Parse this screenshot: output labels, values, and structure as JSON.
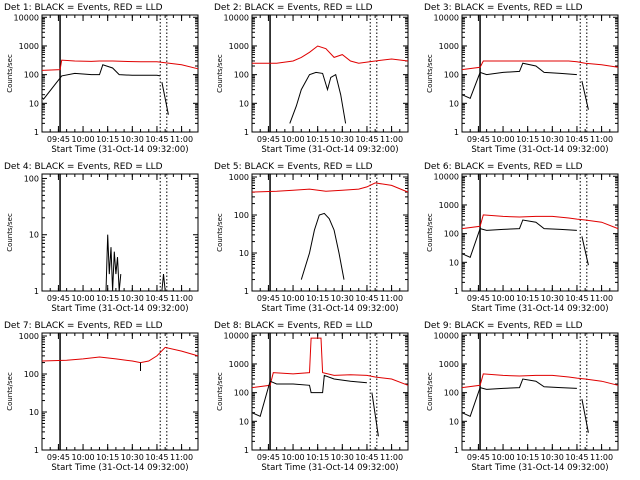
{
  "colors": {
    "events": "#000000",
    "lld": "#e00000",
    "background": "#ffffff"
  },
  "chart_data": [
    {
      "type": "line",
      "title": "Det 1: BLACK = Events, RED = LLD",
      "xlabel": "Start Time (31-Oct-14 09:32:00)",
      "ylabel": "Counts/sec",
      "y_scale": "log",
      "ylim": [
        1,
        12000
      ],
      "yticks": [
        "1",
        "10",
        "100",
        "1000",
        "10000"
      ],
      "xlim": [
        "09:35",
        "11:10"
      ],
      "xticks": [
        "09:45",
        "10:00",
        "10:15",
        "10:30",
        "10:45",
        "11:00"
      ],
      "markers": {
        "solid": "09:46",
        "dotted": [
          "10:47",
          "10:51"
        ]
      },
      "series": [
        {
          "name": "LLD",
          "x": [
            "09:35",
            "09:46",
            "09:47",
            "09:55",
            "10:05",
            "10:10",
            "10:18",
            "10:25",
            "10:35",
            "10:45",
            "10:50",
            "11:00",
            "11:10"
          ],
          "y": [
            140,
            150,
            320,
            300,
            290,
            300,
            300,
            290,
            280,
            280,
            260,
            220,
            160
          ]
        },
        {
          "name": "Events",
          "x": [
            "09:35",
            "09:36",
            "09:47",
            "09:55",
            "10:05",
            "10:10",
            "10:12",
            "10:18",
            "10:22",
            "10:30",
            "10:45",
            "10:47"
          ],
          "y": [
            16,
            14,
            90,
            110,
            100,
            100,
            220,
            170,
            100,
            95,
            95,
            90
          ]
        },
        {
          "name": "Events",
          "x": [
            "10:48",
            "10:52"
          ],
          "y": [
            55,
            4
          ]
        }
      ]
    },
    {
      "type": "line",
      "title": "Det 2: BLACK = Events, RED = LLD",
      "xlabel": "Start Time (31-Oct-14 09:32:00)",
      "ylabel": "Counts/sec",
      "y_scale": "log",
      "ylim": [
        1,
        12000
      ],
      "yticks": [
        "1",
        "10",
        "100",
        "1000",
        "10000"
      ],
      "xlim": [
        "09:35",
        "11:10"
      ],
      "xticks": [
        "09:45",
        "10:00",
        "10:15",
        "10:30",
        "10:45",
        "11:00"
      ],
      "markers": {
        "solid": "09:46",
        "dotted": [
          "10:47",
          "10:51"
        ]
      },
      "series": [
        {
          "name": "LLD",
          "x": [
            "09:35",
            "09:50",
            "10:00",
            "10:05",
            "10:10",
            "10:15",
            "10:20",
            "10:25",
            "10:30",
            "10:35",
            "10:40",
            "10:50",
            "11:00",
            "11:10"
          ],
          "y": [
            250,
            250,
            300,
            400,
            600,
            1000,
            800,
            400,
            500,
            300,
            250,
            300,
            350,
            300
          ]
        },
        {
          "name": "Events",
          "x": [
            "09:58",
            "10:02",
            "10:05",
            "10:10",
            "10:14",
            "10:18",
            "10:21",
            "10:23",
            "10:26",
            "10:29",
            "10:32"
          ],
          "y": [
            2,
            8,
            30,
            100,
            120,
            110,
            30,
            80,
            100,
            20,
            2
          ]
        }
      ]
    },
    {
      "type": "line",
      "title": "Det 3: BLACK = Events, RED = LLD",
      "xlabel": "Start Time (31-Oct-14 09:32:00)",
      "ylabel": "Counts/sec",
      "y_scale": "log",
      "ylim": [
        1,
        12000
      ],
      "yticks": [
        "1",
        "10",
        "100",
        "1000",
        "10000"
      ],
      "xlim": [
        "09:35",
        "11:10"
      ],
      "xticks": [
        "09:45",
        "10:00",
        "10:15",
        "10:30",
        "10:45",
        "11:00"
      ],
      "markers": {
        "solid": "09:46",
        "dotted": [
          "10:47",
          "10:51"
        ]
      },
      "series": [
        {
          "name": "LLD",
          "x": [
            "09:35",
            "09:46",
            "09:48",
            "10:00",
            "10:10",
            "10:20",
            "10:30",
            "10:40",
            "10:45",
            "10:50",
            "11:00",
            "11:10"
          ],
          "y": [
            150,
            180,
            300,
            300,
            300,
            300,
            300,
            300,
            280,
            250,
            220,
            180
          ]
        },
        {
          "name": "Events",
          "x": [
            "09:35",
            "09:40",
            "09:46",
            "09:50",
            "10:00",
            "10:10",
            "10:12",
            "10:20",
            "10:25",
            "10:35",
            "10:45"
          ],
          "y": [
            20,
            15,
            120,
            100,
            120,
            130,
            250,
            200,
            120,
            110,
            100
          ]
        },
        {
          "name": "Events",
          "x": [
            "10:48",
            "10:52"
          ],
          "y": [
            60,
            6
          ]
        }
      ]
    },
    {
      "type": "line",
      "title": "Det 4: BLACK = Events, RED = LLD",
      "xlabel": "Start Time (31-Oct-14 09:32:00)",
      "ylabel": "Counts/sec",
      "y_scale": "log",
      "ylim": [
        1,
        120
      ],
      "yticks": [
        "1",
        "10",
        "100"
      ],
      "xlim": [
        "09:35",
        "11:10"
      ],
      "xticks": [
        "09:45",
        "10:00",
        "10:15",
        "10:30",
        "10:45",
        "11:00"
      ],
      "markers": {
        "solid": "09:46",
        "dotted": [
          "10:47",
          "10:51"
        ]
      },
      "series": [
        {
          "name": "Events",
          "x": [
            "10:14",
            "10:15",
            "10:16",
            "10:17",
            "10:18",
            "10:19",
            "10:20",
            "10:21",
            "10:22",
            "10:23"
          ],
          "y": [
            1,
            10,
            2,
            6,
            1,
            5,
            2,
            4,
            1,
            2
          ]
        },
        {
          "name": "Events",
          "x": [
            "10:48",
            "10:49",
            "10:50"
          ],
          "y": [
            1,
            2,
            1
          ]
        }
      ]
    },
    {
      "type": "line",
      "title": "Det 5: BLACK = Events, RED = LLD",
      "xlabel": "Start Time (31-Oct-14 09:32:00)",
      "ylabel": "Counts/sec",
      "y_scale": "log",
      "ylim": [
        1,
        1200
      ],
      "yticks": [
        "1",
        "10",
        "100",
        "1000"
      ],
      "xlim": [
        "09:35",
        "11:10"
      ],
      "xticks": [
        "09:45",
        "10:00",
        "10:15",
        "10:30",
        "10:45",
        "11:00"
      ],
      "markers": {
        "solid": "09:46",
        "dotted": [
          "10:47",
          "10:51"
        ]
      },
      "series": [
        {
          "name": "LLD",
          "x": [
            "09:35",
            "09:50",
            "10:00",
            "10:10",
            "10:20",
            "10:30",
            "10:40",
            "10:45",
            "10:50",
            "11:00",
            "11:10"
          ],
          "y": [
            400,
            420,
            450,
            480,
            420,
            450,
            480,
            550,
            700,
            600,
            400
          ]
        },
        {
          "name": "Events",
          "x": [
            "10:05",
            "10:10",
            "10:13",
            "10:16",
            "10:19",
            "10:22",
            "10:25",
            "10:28",
            "10:31"
          ],
          "y": [
            2,
            10,
            40,
            100,
            110,
            80,
            40,
            10,
            2
          ]
        }
      ]
    },
    {
      "type": "line",
      "title": "Det 6: BLACK = Events, RED = LLD",
      "xlabel": "Start Time (31-Oct-14 09:32:00)",
      "ylabel": "Counts/sec",
      "y_scale": "log",
      "ylim": [
        1,
        12000
      ],
      "yticks": [
        "1",
        "10",
        "100",
        "1000",
        "10000"
      ],
      "xlim": [
        "09:35",
        "11:10"
      ],
      "xticks": [
        "09:45",
        "10:00",
        "10:15",
        "10:30",
        "10:45",
        "11:00"
      ],
      "markers": {
        "solid": "09:46",
        "dotted": [
          "10:47",
          "10:51"
        ]
      },
      "series": [
        {
          "name": "LLD",
          "x": [
            "09:35",
            "09:46",
            "09:48",
            "10:00",
            "10:10",
            "10:20",
            "10:30",
            "10:40",
            "10:45",
            "10:50",
            "11:00",
            "11:10"
          ],
          "y": [
            150,
            180,
            450,
            400,
            380,
            400,
            400,
            350,
            320,
            300,
            250,
            150
          ]
        },
        {
          "name": "Events",
          "x": [
            "09:35",
            "09:40",
            "09:46",
            "09:50",
            "10:00",
            "10:10",
            "10:12",
            "10:20",
            "10:25",
            "10:35",
            "10:45"
          ],
          "y": [
            20,
            15,
            150,
            130,
            140,
            150,
            300,
            250,
            150,
            140,
            130
          ]
        },
        {
          "name": "Events",
          "x": [
            "10:48",
            "10:52"
          ],
          "y": [
            80,
            8
          ]
        }
      ]
    },
    {
      "type": "line",
      "title": "Det 7: BLACK = Events, RED = LLD",
      "xlabel": "Start Time (31-Oct-14 09:32:00)",
      "ylabel": "Counts/sec",
      "y_scale": "log",
      "ylim": [
        1,
        1200
      ],
      "yticks": [
        "1",
        "10",
        "100",
        "1000"
      ],
      "xlim": [
        "09:35",
        "11:10"
      ],
      "xticks": [
        "09:45",
        "10:00",
        "10:15",
        "10:30",
        "10:45",
        "11:00"
      ],
      "markers": {
        "solid": "09:46",
        "dotted": [
          "10:47",
          "10:51"
        ]
      },
      "series": [
        {
          "name": "LLD",
          "x": [
            "09:35",
            "09:50",
            "10:00",
            "10:10",
            "10:20",
            "10:30",
            "10:35",
            "10:40",
            "10:45",
            "10:50",
            "11:00",
            "11:10"
          ],
          "y": [
            220,
            230,
            250,
            280,
            250,
            220,
            200,
            220,
            300,
            500,
            400,
            300
          ]
        },
        {
          "name": "Events",
          "x": [
            "10:35",
            "10:35"
          ],
          "y": [
            200,
            120
          ]
        }
      ]
    },
    {
      "type": "line",
      "title": "Det 8: BLACK = Events, RED = LLD",
      "xlabel": "Start Time (31-Oct-14 09:32:00)",
      "ylabel": "Counts/sec",
      "y_scale": "log",
      "ylim": [
        1,
        12000
      ],
      "yticks": [
        "1",
        "10",
        "100",
        "1000",
        "10000"
      ],
      "xlim": [
        "09:35",
        "11:10"
      ],
      "xticks": [
        "09:45",
        "10:00",
        "10:15",
        "10:30",
        "10:45",
        "11:00"
      ],
      "markers": {
        "solid": "09:46",
        "dotted": [
          "10:47",
          "10:51"
        ]
      },
      "series": [
        {
          "name": "LLD",
          "x": [
            "09:35",
            "09:46",
            "09:48",
            "10:00",
            "10:10",
            "10:11",
            "10:17",
            "10:18",
            "10:25",
            "10:35",
            "10:45",
            "10:50",
            "11:00",
            "11:10"
          ],
          "y": [
            150,
            180,
            500,
            450,
            500,
            8000,
            8000,
            500,
            400,
            420,
            400,
            350,
            300,
            180
          ]
        },
        {
          "name": "Events",
          "x": [
            "09:35",
            "09:40",
            "09:46",
            "09:50",
            "10:00",
            "10:10",
            "10:11",
            "10:18",
            "10:19",
            "10:25",
            "10:35",
            "10:45"
          ],
          "y": [
            20,
            15,
            250,
            200,
            200,
            180,
            100,
            100,
            400,
            300,
            250,
            220
          ]
        },
        {
          "name": "Events",
          "x": [
            "10:48",
            "10:52"
          ],
          "y": [
            100,
            3
          ]
        }
      ]
    },
    {
      "type": "line",
      "title": "Det 9: BLACK = Events, RED = LLD",
      "xlabel": "Start Time (31-Oct-14 09:32:00)",
      "ylabel": "Counts/sec",
      "y_scale": "log",
      "ylim": [
        1,
        12000
      ],
      "yticks": [
        "1",
        "10",
        "100",
        "1000",
        "10000"
      ],
      "xlim": [
        "09:35",
        "11:10"
      ],
      "xticks": [
        "09:45",
        "10:00",
        "10:15",
        "10:30",
        "10:45",
        "11:00"
      ],
      "markers": {
        "solid": "09:46",
        "dotted": [
          "10:47",
          "10:51"
        ]
      },
      "series": [
        {
          "name": "LLD",
          "x": [
            "09:35",
            "09:46",
            "09:48",
            "10:00",
            "10:10",
            "10:20",
            "10:30",
            "10:40",
            "10:45",
            "10:50",
            "11:00",
            "11:10"
          ],
          "y": [
            150,
            180,
            450,
            400,
            380,
            400,
            400,
            350,
            320,
            300,
            250,
            180
          ]
        },
        {
          "name": "Events",
          "x": [
            "09:35",
            "09:40",
            "09:46",
            "09:50",
            "10:00",
            "10:10",
            "10:12",
            "10:20",
            "10:25",
            "10:35",
            "10:45"
          ],
          "y": [
            20,
            15,
            150,
            130,
            140,
            150,
            300,
            250,
            160,
            150,
            140
          ]
        },
        {
          "name": "Events",
          "x": [
            "10:48",
            "10:52"
          ],
          "y": [
            60,
            4
          ]
        }
      ]
    }
  ]
}
